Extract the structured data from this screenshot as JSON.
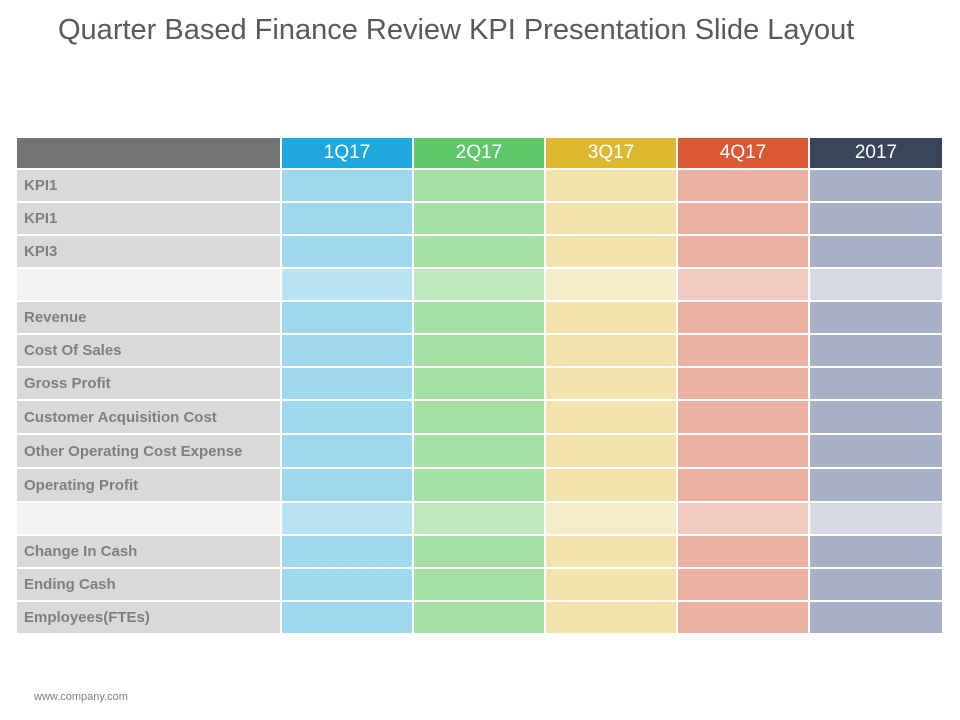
{
  "slide": {
    "title": "Quarter Based Finance Review KPI Presentation Slide Layout",
    "footer": "www.company.com"
  },
  "table": {
    "columns": [
      {
        "label": "1Q17",
        "color": "#1ea8df"
      },
      {
        "label": "2Q17",
        "color": "#5fc76a"
      },
      {
        "label": "3Q17",
        "color": "#ddb831"
      },
      {
        "label": "4Q17",
        "color": "#d95a35"
      },
      {
        "label": "2017",
        "color": "#3b4559"
      }
    ],
    "header_stub_color": "#737373",
    "rows": [
      "KPI1",
      "KPI1",
      "KPI3",
      "",
      "Revenue",
      "Cost Of Sales",
      "Gross Profit",
      "Customer Acquisition Cost",
      "Other Operating Cost Expense",
      "Operating Profit",
      "",
      "Change In Cash",
      "Ending Cash",
      "Employees(FTEs)"
    ]
  }
}
